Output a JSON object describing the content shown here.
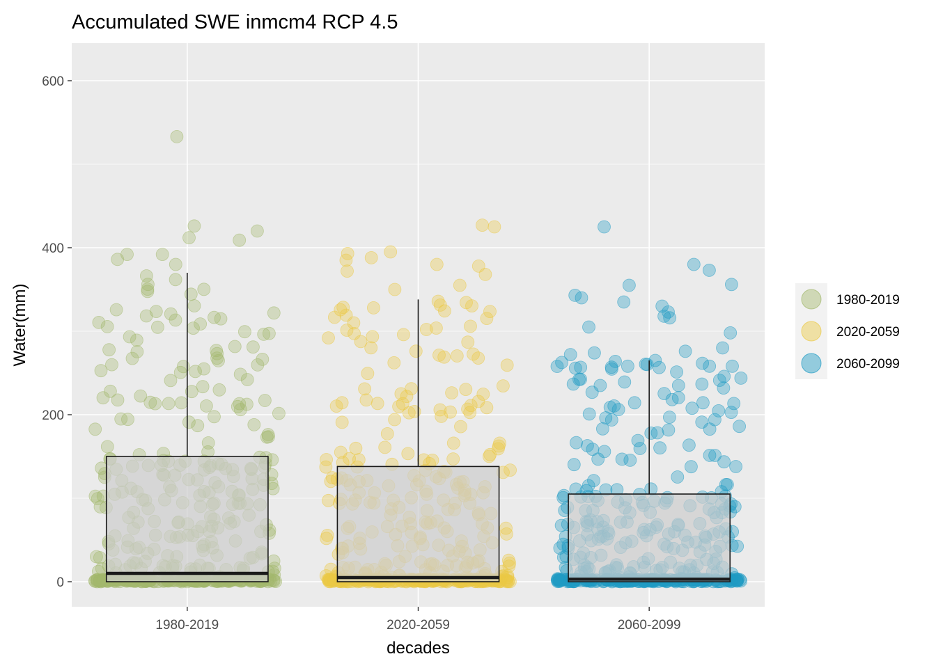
{
  "chart_data": {
    "type": "boxplot",
    "title": "Accumulated SWE inmcm4 RCP 4.5",
    "xlabel": "decades",
    "ylabel": "Water(mm)",
    "categories": [
      "1980-2019",
      "2020-2059",
      "2060-2099"
    ],
    "ylim": [
      -58,
      642
    ],
    "yticks": [
      0,
      200,
      400,
      600
    ],
    "y_tick_labels": [
      "0",
      "200",
      "400",
      "600"
    ],
    "grid": true,
    "legend_position": "right",
    "points_per_group": 430,
    "point_alpha": 0.35,
    "boxes": [
      {
        "category": "1980-2019",
        "color": "#A3B86C",
        "q1": 0,
        "median": 10,
        "q3": 150,
        "whisker_low": 0,
        "whisker_high": 370
      },
      {
        "category": "2020-2059",
        "color": "#EBC944",
        "q1": 0,
        "median": 5,
        "q3": 138,
        "whisker_low": 0,
        "whisker_high": 338
      },
      {
        "category": "2060-2099",
        "color": "#1F9BC4",
        "q1": 0,
        "median": 3,
        "q3": 105,
        "whisker_low": 0,
        "whisker_high": 265
      }
    ],
    "outliers": [
      {
        "category": "1980-2019",
        "values": [
          533,
          426,
          420,
          412,
          409,
          392,
          392,
          386,
          380
        ]
      },
      {
        "category": "2020-2059",
        "values": [
          427,
          425,
          395,
          393,
          388,
          385,
          380,
          378,
          372,
          368,
          355,
          350
        ]
      },
      {
        "category": "2060-2099",
        "values": [
          425,
          380,
          373,
          356,
          355,
          343,
          340,
          335,
          330,
          323,
          318,
          316,
          305,
          298,
          280,
          276,
          274,
          272
        ]
      }
    ],
    "legend": {
      "entries": [
        {
          "label": "1980-2019",
          "color": "#A3B86C"
        },
        {
          "label": "2020-2059",
          "color": "#EBC944"
        },
        {
          "label": "2060-2099",
          "color": "#1F9BC4"
        }
      ]
    }
  }
}
